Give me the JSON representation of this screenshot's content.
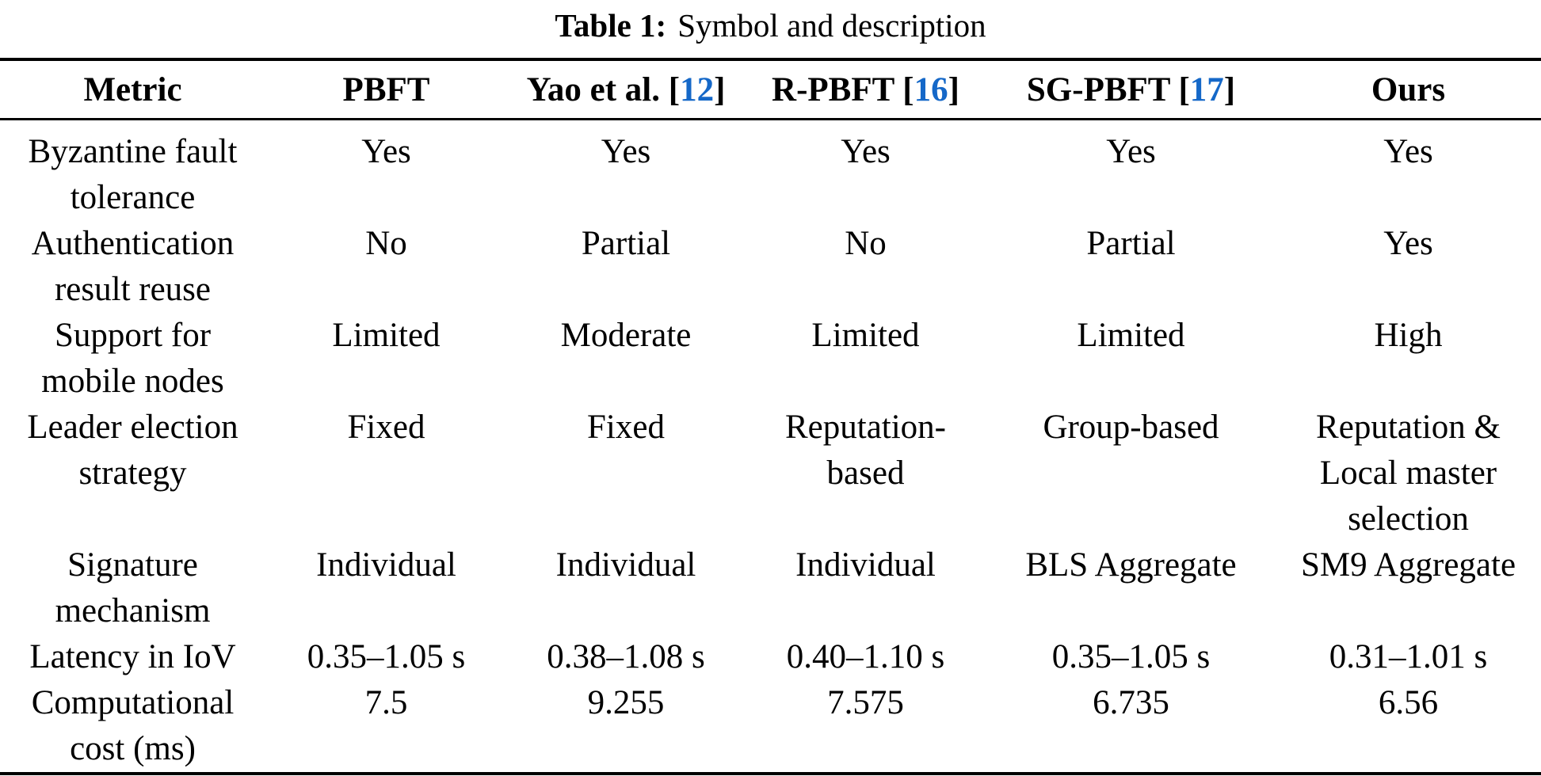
{
  "caption": {
    "label": "Table 1:",
    "text": "Symbol and description"
  },
  "colors": {
    "text": "#000000",
    "background": "#ffffff",
    "rule": "#000000",
    "citation": "#1568c8"
  },
  "table": {
    "header": [
      {
        "label": "Metric"
      },
      {
        "label": "PBFT"
      },
      {
        "label": "Yao et al.",
        "citation": "12"
      },
      {
        "label": "R-PBFT",
        "citation": "16"
      },
      {
        "label": "SG-PBFT",
        "citation": "17"
      },
      {
        "label": "Ours"
      }
    ],
    "rows": [
      {
        "metric": "Byzantine fault tolerance",
        "values": [
          "Yes",
          "Yes",
          "Yes",
          "Yes",
          "Yes"
        ]
      },
      {
        "metric": "Authentication result reuse",
        "values": [
          "No",
          "Partial",
          "No",
          "Partial",
          "Yes"
        ]
      },
      {
        "metric": "Support for mobile nodes",
        "values": [
          "Limited",
          "Moderate",
          "Limited",
          "Limited",
          "High"
        ]
      },
      {
        "metric": "Leader election strategy",
        "values": [
          "Fixed",
          "Fixed",
          "Reputation-based",
          "Group-based",
          "Reputation & Local master selection"
        ]
      },
      {
        "metric": "Signature mechanism",
        "values": [
          "Individual",
          "Individual",
          "Individual",
          "BLS Aggregate",
          "SM9 Aggregate"
        ]
      },
      {
        "metric": "Latency in IoV",
        "values": [
          "0.35–1.05 s",
          "0.38–1.08 s",
          "0.40–1.10 s",
          "0.35–1.05 s",
          "0.31–1.01 s"
        ]
      },
      {
        "metric": "Computational cost (ms)",
        "values": [
          "7.5",
          "9.255",
          "7.575",
          "6.735",
          "6.56"
        ]
      }
    ]
  }
}
